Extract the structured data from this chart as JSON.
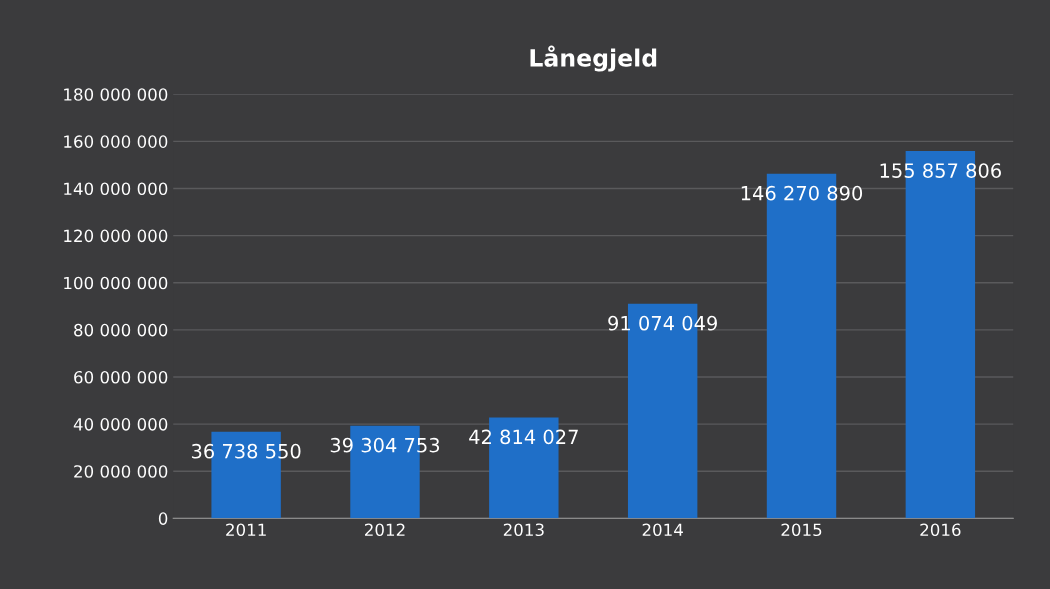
{
  "chart_data": {
    "type": "bar",
    "title": "Lånegjeld",
    "categories": [
      "2011",
      "2012",
      "2013",
      "2014",
      "2015",
      "2016"
    ],
    "values": [
      36738550,
      39304753,
      42814027,
      91074049,
      146270890,
      155857806
    ],
    "value_labels": [
      "36 738 550",
      "39 304 753",
      "42 814 027",
      "91 074 049",
      "146 270 890",
      "155 857 806"
    ],
    "color": "#1f6fc8",
    "ylim": [
      0,
      180000000
    ],
    "yticks": [
      {
        "value": 0,
        "label": "0"
      },
      {
        "value": 20000000,
        "label": "20 000 000"
      },
      {
        "value": 40000000,
        "label": "40 000 000"
      },
      {
        "value": 60000000,
        "label": "60 000 000"
      },
      {
        "value": 80000000,
        "label": "80 000 000"
      },
      {
        "value": 100000000,
        "label": "100 000 000"
      },
      {
        "value": 120000000,
        "label": "120 000 000"
      },
      {
        "value": 140000000,
        "label": "140 000 000"
      },
      {
        "value": 160000000,
        "label": "160 000 000"
      },
      {
        "value": 180000000,
        "label": "180 000 000"
      }
    ],
    "grid": "y"
  }
}
